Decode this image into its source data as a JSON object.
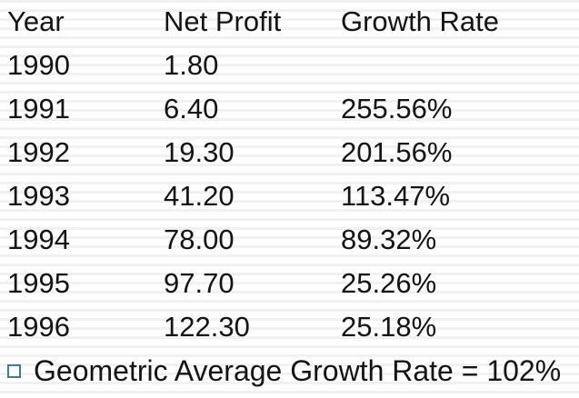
{
  "slide": {
    "table": {
      "columns": [
        "Year",
        "Net Profit",
        "Growth Rate"
      ],
      "rows": [
        {
          "year": "1990",
          "net_profit": "1.80",
          "growth_rate": ""
        },
        {
          "year": "1991",
          "net_profit": "6.40",
          "growth_rate": "255.56%"
        },
        {
          "year": "1992",
          "net_profit": "19.30",
          "growth_rate": "201.56%"
        },
        {
          "year": "1993",
          "net_profit": "41.20",
          "growth_rate": "113.47%"
        },
        {
          "year": "1994",
          "net_profit": "78.00",
          "growth_rate": "89.32%"
        },
        {
          "year": "1995",
          "net_profit": "97.70",
          "growth_rate": "25.26%"
        },
        {
          "year": "1996",
          "net_profit": "122.30",
          "growth_rate": "25.18%"
        }
      ]
    },
    "footer": {
      "text": "Geometric Average Growth Rate = 102%"
    },
    "colors": {
      "text": "#141414",
      "bullet_border": "#417E8D",
      "stripe": "#F1F1F1",
      "background": "#FFFFFF"
    }
  }
}
